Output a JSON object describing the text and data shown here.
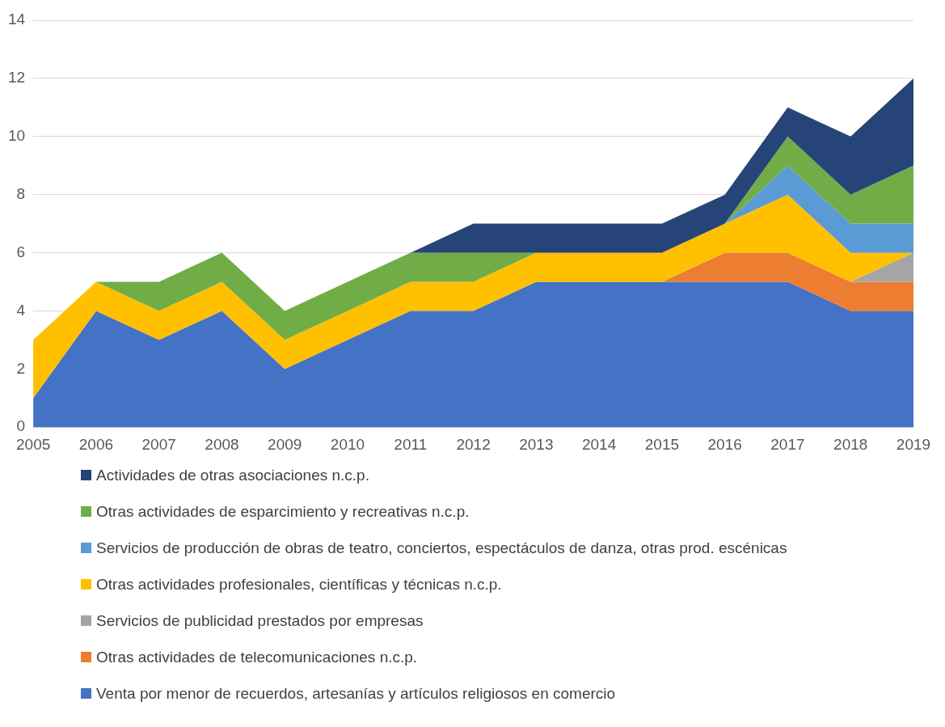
{
  "chart_data": {
    "type": "area",
    "stacked": true,
    "x": [
      2005,
      2006,
      2007,
      2008,
      2009,
      2010,
      2011,
      2012,
      2013,
      2014,
      2015,
      2016,
      2017,
      2018,
      2019
    ],
    "xlim": [
      2005,
      2019
    ],
    "xticks": [
      2005,
      2006,
      2007,
      2008,
      2009,
      2010,
      2011,
      2012,
      2013,
      2014,
      2015,
      2016,
      2017,
      2018,
      2019
    ],
    "ylim": [
      0,
      14
    ],
    "yticks": [
      0,
      2,
      4,
      6,
      8,
      10,
      12,
      14
    ],
    "grid": "y",
    "legend": "bottom",
    "marker": "none",
    "series": [
      {
        "name": "Venta por menor de recuerdos, artesanías y artículos religiosos en comercio",
        "color": "#4472c4",
        "values": [
          1,
          4,
          3,
          4,
          2,
          3,
          4,
          4,
          5,
          5,
          5,
          5,
          5,
          4,
          4
        ]
      },
      {
        "name": "Otras actividades de telecomunicaciones n.c.p.",
        "color": "#ed7d31",
        "values": [
          null,
          null,
          null,
          null,
          null,
          null,
          null,
          null,
          null,
          null,
          0,
          1,
          1,
          1,
          1
        ]
      },
      {
        "name": "Servicios de publicidad prestados por empresas",
        "color": "#a5a5a5",
        "values": [
          null,
          null,
          null,
          null,
          null,
          null,
          null,
          null,
          null,
          null,
          null,
          null,
          null,
          0,
          1
        ]
      },
      {
        "name": "Otras actividades profesionales, científicas y técnicas n.c.p.",
        "color": "#ffc000",
        "values": [
          2,
          1,
          1,
          1,
          1,
          1,
          1,
          1,
          1,
          1,
          1,
          1,
          2,
          1,
          0
        ]
      },
      {
        "name": "Servicios de producción de obras de teatro, conciertos, espectáculos de danza, otras prod. escénicas",
        "color": "#5b9bd5",
        "values": [
          null,
          null,
          null,
          null,
          null,
          null,
          null,
          null,
          null,
          null,
          null,
          0,
          1,
          1,
          1
        ]
      },
      {
        "name": "Otras actividades de esparcimiento y recreativas n.c.p.",
        "color": "#70ad47",
        "values": [
          null,
          0,
          1,
          1,
          1,
          1,
          1,
          1,
          0,
          0,
          0,
          0,
          1,
          1,
          2
        ]
      },
      {
        "name": "Actividades de otras asociaciones n.c.p.",
        "color": "#264478",
        "values": [
          null,
          null,
          null,
          null,
          null,
          null,
          0,
          1,
          1,
          1,
          1,
          1,
          1,
          2,
          3
        ]
      }
    ]
  }
}
